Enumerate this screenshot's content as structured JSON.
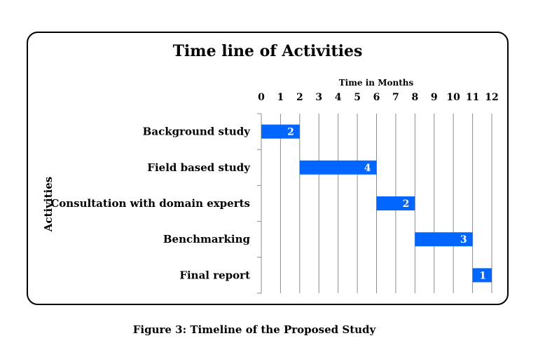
{
  "chart_data": {
    "type": "bar",
    "orientation": "horizontal",
    "stacked": true,
    "title": "Time line of Activities",
    "xlabel": "Time in Months",
    "ylabel": "Activities",
    "x_ticks": [
      0,
      1,
      2,
      3,
      4,
      5,
      6,
      7,
      8,
      9,
      10,
      11,
      12
    ],
    "xlim": [
      0,
      12
    ],
    "x_axis_position": "top",
    "grid": true,
    "categories": [
      "Background study",
      "Field based study",
      "Consultation with domain experts",
      "Benchmarking",
      "Final report"
    ],
    "start": [
      0,
      2,
      6,
      8,
      11
    ],
    "values": [
      2,
      4,
      2,
      3,
      1
    ],
    "bar_color": "#0066ff",
    "grid_color": "#8c8c8c"
  },
  "caption": "Figure 3: Timeline of the Proposed Study"
}
